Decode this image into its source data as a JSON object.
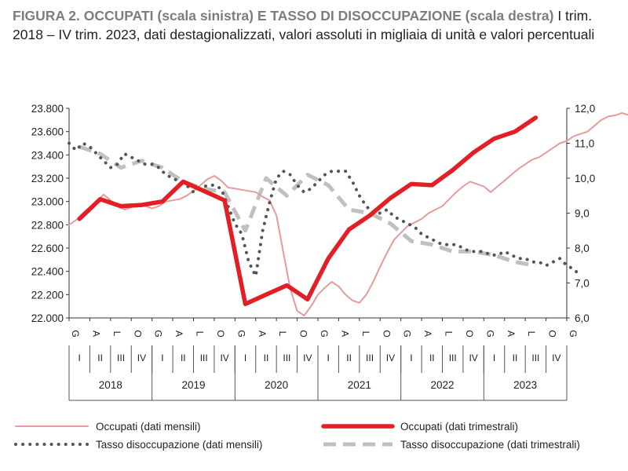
{
  "title": {
    "bold_part": "FIGURA 2. OCCUPATI (scala sinistra) E TASSO DI DISOCCUPAZIONE (scala destra)",
    "rest": "I trim. 2018 – IV trim. 2023, dati destagionalizzati, valori assoluti in migliaia di unità e valori percentuali"
  },
  "chart_data": {
    "type": "line",
    "title": "FIGURA 2. OCCUPATI (scala sinistra) E TASSO DI DISOCCUPAZIONE (scala destra)",
    "subtitle": "I trim. 2018 – IV trim. 2023, dati destagionalizzati, valori assoluti in migliaia di unità e valori percentuali",
    "y_left": {
      "range": [
        22000,
        23800
      ],
      "ticks": [
        "22.000",
        "22.200",
        "22.400",
        "22.600",
        "22.800",
        "23.000",
        "23.200",
        "23.400",
        "23.600",
        "23.800"
      ]
    },
    "y_right": {
      "range": [
        6.0,
        12.0
      ],
      "ticks": [
        "6,0",
        "7,0",
        "8,0",
        "9,0",
        "10,0",
        "11,0",
        "12,0"
      ]
    },
    "month_labels": [
      "G",
      "A",
      "L",
      "O"
    ],
    "quarter_labels": [
      "I",
      "II",
      "III",
      "IV"
    ],
    "years": [
      "2018",
      "2019",
      "2020",
      "2021",
      "2022",
      "2023"
    ],
    "grid": false,
    "legend_position": "bottom",
    "series": [
      {
        "name": "Occupati (dati mensili)",
        "axis": "left",
        "color": "#e89a9a",
        "values": [
          22800,
          22840,
          22900,
          22950,
          23000,
          23060,
          23010,
          22960,
          22930,
          22950,
          22980,
          22960,
          22940,
          22960,
          23000,
          23010,
          23020,
          23050,
          23090,
          23140,
          23190,
          23220,
          23180,
          23120,
          23110,
          23100,
          23090,
          23080,
          23040,
          23010,
          22880,
          22560,
          22250,
          22060,
          22020,
          22100,
          22200,
          22260,
          22310,
          22270,
          22200,
          22150,
          22130,
          22200,
          22310,
          22440,
          22560,
          22670,
          22730,
          22790,
          22820,
          22850,
          22900,
          22930,
          22960,
          23020,
          23080,
          23130,
          23170,
          23150,
          23130,
          23080,
          23130,
          23180,
          23230,
          23280,
          23320,
          23360,
          23380,
          23420,
          23460,
          23500,
          23520,
          23560,
          23580,
          23600,
          23650,
          23700,
          23730,
          23740,
          23760,
          23740
        ]
      },
      {
        "name": "Occupati (dati trimestrali)",
        "axis": "left",
        "color": "#e41e25",
        "values": [
          22850,
          23020,
          22960,
          22970,
          23000,
          23170,
          23090,
          23010,
          22120,
          22200,
          22280,
          22160,
          22510,
          22760,
          22880,
          23030,
          23150,
          23140,
          23270,
          23420,
          23540,
          23600,
          23720
        ]
      },
      {
        "name": "Tasso disoccupazione (dati mensili)",
        "axis": "right",
        "color": "#555555",
        "values": [
          11.0,
          10.8,
          11.0,
          10.9,
          10.7,
          10.5,
          10.3,
          10.4,
          10.7,
          10.6,
          10.5,
          10.4,
          10.4,
          10.3,
          10.1,
          10.0,
          9.9,
          9.8,
          9.6,
          9.7,
          9.8,
          9.8,
          9.7,
          9.2,
          8.7,
          8.4,
          7.6,
          7.2,
          8.5,
          9.3,
          10.0,
          10.2,
          10.1,
          9.8,
          9.6,
          9.7,
          9.9,
          10.1,
          10.2,
          10.2,
          10.2,
          9.9,
          9.5,
          9.2,
          9.0,
          9.0,
          9.1,
          8.9,
          8.8,
          8.7,
          8.6,
          8.4,
          8.3,
          8.2,
          8.1,
          8.1,
          8.1,
          8.0,
          7.9,
          7.9,
          7.9,
          7.8,
          7.8,
          7.9,
          7.8,
          7.7,
          7.7,
          7.6,
          7.6,
          7.5,
          7.6,
          7.7,
          7.5,
          7.4,
          7.2
        ]
      },
      {
        "name": "Tasso disoccupazione (dati trimestrali)",
        "axis": "right",
        "color": "#c0c0c0",
        "values": [
          10.9,
          10.7,
          10.3,
          10.5,
          10.3,
          9.9,
          9.7,
          9.6,
          8.5,
          10.0,
          9.5,
          10.1,
          9.8,
          9.1,
          9.0,
          8.7,
          8.2,
          8.1,
          7.9,
          7.9,
          7.8,
          7.6,
          7.5
        ]
      }
    ],
    "legend": [
      "Occupati (dati mensili)",
      "Occupati (dati trimestrali)",
      "Tasso disoccupazione (dati mensili)",
      "Tasso disoccupazione (dati trimestrali)"
    ]
  }
}
